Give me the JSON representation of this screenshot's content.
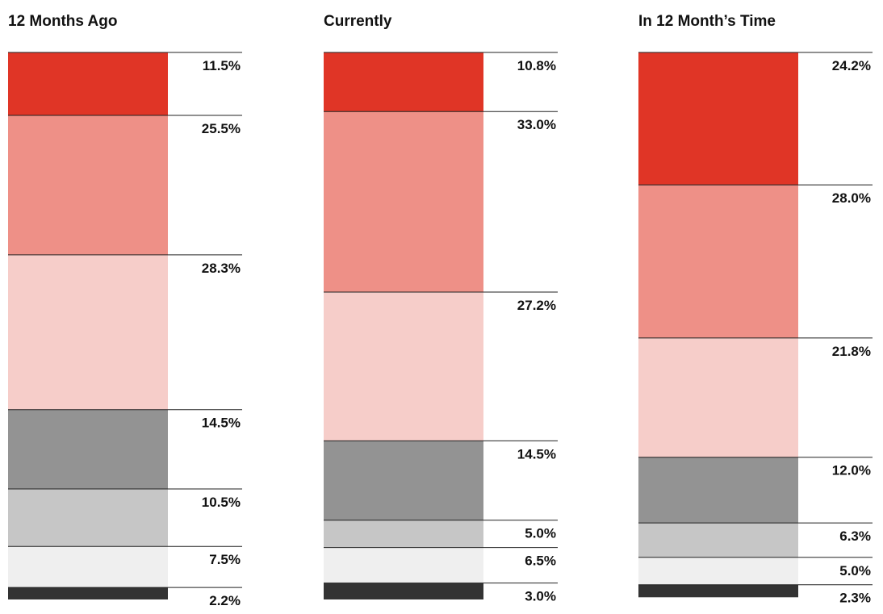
{
  "chart_data": [
    {
      "type": "bar",
      "title": "12 Months Ago",
      "values": [
        11.5,
        25.5,
        28.3,
        14.5,
        10.5,
        7.5,
        2.2
      ],
      "value_labels": [
        "11.5%",
        "25.5%",
        "28.3%",
        "14.5%",
        "10.5%",
        "7.5%",
        "2.2%"
      ],
      "colors": [
        "#e03526",
        "#ee9087",
        "#f6cdc9",
        "#939393",
        "#c6c6c6",
        "#efefef",
        "#333333"
      ]
    },
    {
      "type": "bar",
      "title": "Currently",
      "values": [
        10.8,
        33.0,
        27.2,
        14.5,
        5.0,
        6.5,
        3.0
      ],
      "value_labels": [
        "10.8%",
        "33.0%",
        "27.2%",
        "14.5%",
        "5.0%",
        "6.5%",
        "3.0%"
      ],
      "colors": [
        "#e03526",
        "#ee9087",
        "#f6cdc9",
        "#939393",
        "#c6c6c6",
        "#efefef",
        "#333333"
      ]
    },
    {
      "type": "bar",
      "title": "In 12 Month’s Time",
      "values": [
        24.2,
        28.0,
        21.8,
        12.0,
        6.3,
        5.0,
        2.3
      ],
      "value_labels": [
        "24.2%",
        "28.0%",
        "21.8%",
        "12.0%",
        "6.3%",
        "5.0%",
        "2.3%"
      ],
      "colors": [
        "#e03526",
        "#ee9087",
        "#f6cdc9",
        "#939393",
        "#c6c6c6",
        "#efefef",
        "#333333"
      ]
    }
  ]
}
